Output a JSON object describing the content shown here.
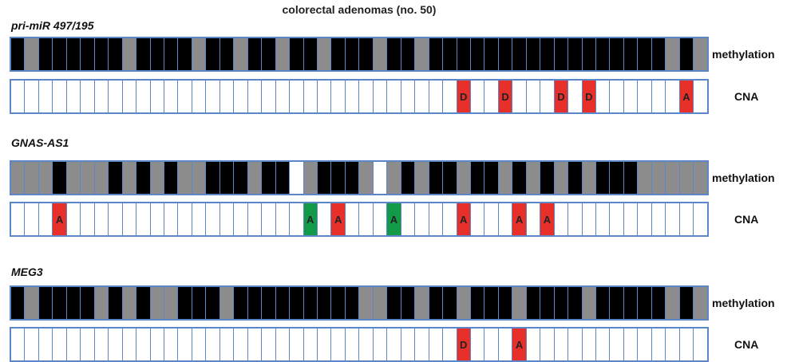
{
  "title": "colorectal adenomas (no. 50)",
  "labels": {
    "methylation": "methylation",
    "cna": "CNA"
  },
  "legend_codes": {
    "1": "methylated",
    "0": "unmethylated",
    "2": "no data"
  },
  "colors": {
    "methylated": "#000000",
    "unmethylated": "#8c8c8c",
    "cna_red": "#e8302a",
    "cna_green": "#139a48",
    "border": "#5b86c8"
  },
  "panels": [
    {
      "gene": "pri-miR 497/195",
      "methylation": [
        1,
        0,
        1,
        1,
        1,
        1,
        1,
        1,
        0,
        1,
        1,
        1,
        1,
        0,
        1,
        1,
        0,
        1,
        1,
        0,
        1,
        1,
        0,
        1,
        1,
        1,
        0,
        1,
        1,
        0,
        1,
        1,
        1,
        1,
        1,
        1,
        1,
        1,
        1,
        1,
        1,
        1,
        1,
        1,
        1,
        1,
        1,
        0,
        1,
        0
      ],
      "cna": [
        {
          "index": 32,
          "label": "D",
          "color": "red"
        },
        {
          "index": 35,
          "label": "D",
          "color": "red"
        },
        {
          "index": 39,
          "label": "D",
          "color": "red"
        },
        {
          "index": 41,
          "label": "D",
          "color": "red"
        },
        {
          "index": 48,
          "label": "A",
          "color": "red"
        }
      ]
    },
    {
      "gene": "GNAS-AS1",
      "methylation": [
        0,
        0,
        0,
        1,
        0,
        0,
        0,
        1,
        0,
        1,
        0,
        1,
        0,
        0,
        1,
        1,
        1,
        0,
        1,
        1,
        2,
        0,
        1,
        1,
        1,
        0,
        2,
        0,
        1,
        0,
        1,
        1,
        0,
        1,
        1,
        0,
        1,
        0,
        1,
        0,
        1,
        0,
        1,
        1,
        1,
        0,
        0,
        0,
        0,
        0
      ],
      "cna": [
        {
          "index": 3,
          "label": "A",
          "color": "red"
        },
        {
          "index": 21,
          "label": "A",
          "color": "green"
        },
        {
          "index": 23,
          "label": "A",
          "color": "red"
        },
        {
          "index": 27,
          "label": "A",
          "color": "green"
        },
        {
          "index": 32,
          "label": "A",
          "color": "red"
        },
        {
          "index": 36,
          "label": "A",
          "color": "red"
        },
        {
          "index": 38,
          "label": "A",
          "color": "red"
        }
      ]
    },
    {
      "gene": "MEG3",
      "methylation": [
        1,
        0,
        1,
        1,
        1,
        1,
        0,
        1,
        0,
        1,
        0,
        0,
        1,
        1,
        1,
        0,
        1,
        1,
        1,
        1,
        1,
        1,
        1,
        1,
        1,
        0,
        0,
        1,
        1,
        0,
        1,
        1,
        0,
        1,
        1,
        1,
        0,
        1,
        1,
        1,
        1,
        0,
        1,
        1,
        1,
        1,
        1,
        0,
        1,
        0
      ],
      "cna": [
        {
          "index": 32,
          "label": "D",
          "color": "red"
        },
        {
          "index": 36,
          "label": "A",
          "color": "red"
        }
      ]
    }
  ]
}
